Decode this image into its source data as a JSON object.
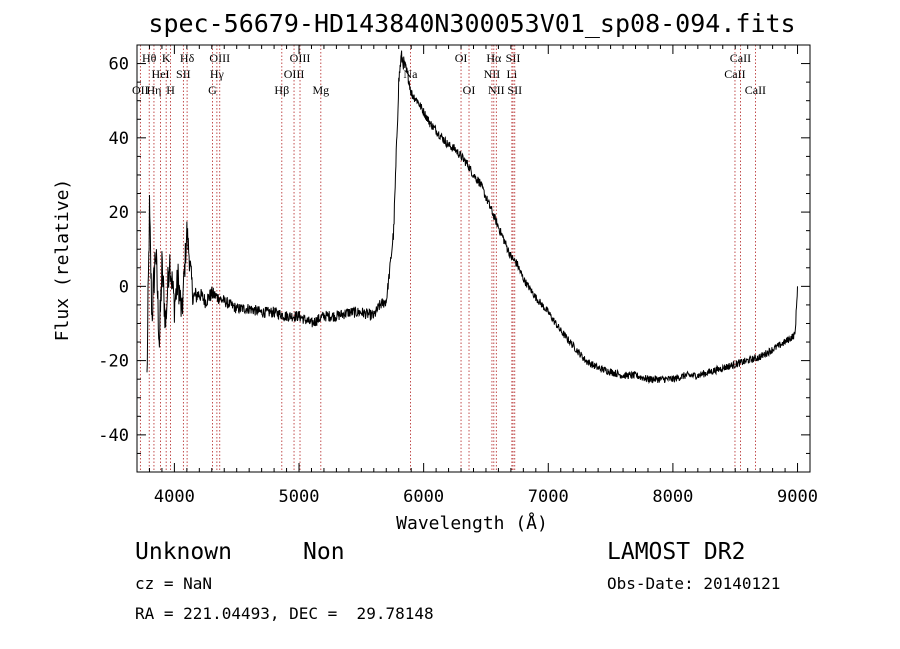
{
  "chart_data": {
    "type": "line",
    "title": "spec-56679-HD143840N300053V01_sp08-094.fits",
    "xlabel": "Wavelength (Å)",
    "ylabel": "Flux (relative)",
    "xlim": [
      3700,
      9100
    ],
    "ylim": [
      -50,
      65
    ],
    "xticks": [
      4000,
      5000,
      6000,
      7000,
      8000,
      9000
    ],
    "yticks": [
      -40,
      -20,
      0,
      20,
      40,
      60
    ],
    "grid": false,
    "series": [
      {
        "color": "#000000",
        "x": [
          3780,
          3800,
          3820,
          3850,
          3880,
          3900,
          3930,
          3960,
          4000,
          4030,
          4060,
          4100,
          4150,
          4200,
          4250,
          4300,
          4400,
          4500,
          4600,
          4700,
          4800,
          4900,
          5000,
          5100,
          5200,
          5300,
          5400,
          5500,
          5600,
          5650,
          5700,
          5730,
          5760,
          5780,
          5800,
          5820,
          5840,
          5860,
          5880,
          5900,
          5950,
          6000,
          6050,
          6100,
          6150,
          6200,
          6250,
          6300,
          6350,
          6400,
          6450,
          6500,
          6550,
          6600,
          6650,
          6700,
          6750,
          6800,
          6900,
          7000,
          7100,
          7200,
          7300,
          7400,
          7500,
          7600,
          7700,
          7800,
          7900,
          8000,
          8100,
          8200,
          8300,
          8400,
          8500,
          8600,
          8700,
          8800,
          8900,
          8980,
          9000
        ],
        "y": [
          -25,
          20,
          -8,
          10,
          -15,
          5,
          -10,
          8,
          -5,
          2,
          -8,
          15,
          -3,
          -2,
          -4,
          -2,
          -4,
          -6,
          -6,
          -7,
          -7,
          -8,
          -8,
          -10,
          -8,
          -8,
          -7,
          -7,
          -8,
          -5,
          -4,
          5,
          15,
          35,
          55,
          62,
          60,
          58,
          56,
          52,
          50,
          47,
          44,
          42,
          40,
          38,
          37,
          35,
          33,
          30,
          28,
          24,
          20,
          16,
          12,
          8,
          6,
          2,
          -3,
          -7,
          -12,
          -16,
          -20,
          -22,
          -23,
          -24,
          -24,
          -25,
          -25,
          -25,
          -24,
          -24,
          -23,
          -22,
          -21,
          -20,
          -19,
          -17,
          -15,
          -13,
          0
        ],
        "noise": [
          6,
          6,
          6,
          6,
          6,
          6,
          5,
          5,
          5,
          5,
          5,
          4,
          3,
          2,
          2,
          2,
          1.5,
          1.5,
          1.5,
          1.5,
          1.5,
          1.5,
          1.5,
          1.5,
          1.5,
          1.5,
          1.5,
          1.5,
          1.5,
          1.5,
          1.5,
          1.5,
          2,
          2,
          2,
          2,
          2,
          2,
          1.5,
          1.5,
          1.2,
          1.2,
          1.2,
          1.2,
          1.2,
          1.2,
          1.2,
          1.2,
          1.2,
          1.2,
          1.2,
          1.2,
          1.2,
          1.2,
          1.2,
          1.2,
          1.2,
          1,
          1,
          1,
          1,
          1,
          1,
          1,
          1,
          1,
          1,
          1,
          1,
          1,
          1,
          1,
          1,
          1,
          1,
          1,
          1,
          1,
          1,
          1,
          1
        ]
      }
    ],
    "line_markers": [
      {
        "label": "OII",
        "x": 3727,
        "row": 2
      },
      {
        "label": "Hθ",
        "x": 3798,
        "row": 0
      },
      {
        "label": "Hη",
        "x": 3836,
        "row": 2
      },
      {
        "label": "HeI",
        "x": 3889,
        "row": 1
      },
      {
        "label": "K",
        "x": 3934,
        "row": 0
      },
      {
        "label": "H",
        "x": 3969,
        "row": 2
      },
      {
        "label": "SII",
        "x": 4072,
        "row": 1
      },
      {
        "label": "Hδ",
        "x": 4102,
        "row": 0
      },
      {
        "label": "G",
        "x": 4305,
        "row": 2
      },
      {
        "label": "Hγ",
        "x": 4341,
        "row": 1
      },
      {
        "label": "OIII",
        "x": 4364,
        "row": 0
      },
      {
        "label": "Hβ",
        "x": 4862,
        "row": 2
      },
      {
        "label": "OIII",
        "x": 4960,
        "row": 1
      },
      {
        "label": "OIII",
        "x": 5008,
        "row": 0
      },
      {
        "label": "Mg",
        "x": 5175,
        "row": 2
      },
      {
        "label": "Na",
        "x": 5894,
        "row": 1
      },
      {
        "label": "OI",
        "x": 6300,
        "row": 0
      },
      {
        "label": "OI",
        "x": 6364,
        "row": 2
      },
      {
        "label": "NII",
        "x": 6548,
        "row": 1
      },
      {
        "label": "Hα",
        "x": 6563,
        "row": 0
      },
      {
        "label": "NII",
        "x": 6583,
        "row": 2
      },
      {
        "label": "Li",
        "x": 6708,
        "row": 1
      },
      {
        "label": "SII",
        "x": 6717,
        "row": 0
      },
      {
        "label": "SII",
        "x": 6731,
        "row": 2
      },
      {
        "label": "CaII",
        "x": 8498,
        "row": 1
      },
      {
        "label": "CaII",
        "x": 8542,
        "row": 0
      },
      {
        "label": "CaII",
        "x": 8662,
        "row": 2
      }
    ]
  },
  "info": {
    "class": "Unknown",
    "subclass": "Non",
    "survey": "LAMOST DR2",
    "cz": "cz = NaN",
    "obs_date": "Obs-Date: 20140121",
    "coords": "RA = 221.04493, DEC =  29.78148"
  }
}
